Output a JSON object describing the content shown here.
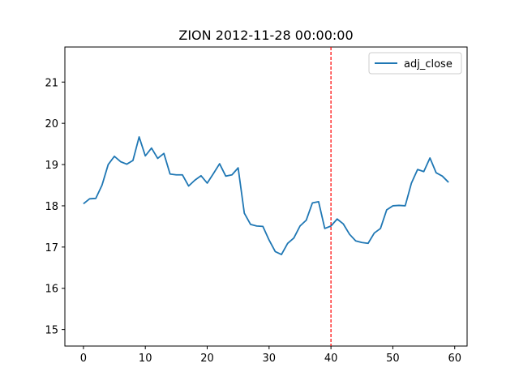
{
  "chart_data": {
    "type": "line",
    "title": "ZION 2012-11-28 00:00:00",
    "xlabel": "",
    "ylabel": "",
    "xlim": [
      -3.0,
      62.0
    ],
    "ylim": [
      14.6,
      21.85
    ],
    "xticks": [
      0,
      10,
      20,
      30,
      40,
      50,
      60
    ],
    "yticks": [
      15,
      16,
      17,
      18,
      19,
      20,
      21
    ],
    "grid": false,
    "legend": "upper right",
    "series": [
      {
        "name": "adj_close",
        "color": "#1f77b4",
        "x": [
          0,
          1,
          2,
          3,
          4,
          5,
          6,
          7,
          8,
          9,
          10,
          11,
          12,
          13,
          14,
          15,
          16,
          17,
          18,
          19,
          20,
          21,
          22,
          23,
          24,
          25,
          26,
          27,
          28,
          29,
          30,
          31,
          32,
          33,
          34,
          35,
          36,
          37,
          38,
          39,
          40,
          41,
          42,
          43,
          44,
          45,
          46,
          47,
          48,
          49,
          50,
          51,
          52,
          53,
          54,
          55,
          56,
          57,
          58,
          59
        ],
        "values": [
          18.05,
          18.17,
          18.18,
          18.5,
          19.0,
          19.2,
          19.07,
          19.01,
          19.1,
          19.67,
          19.21,
          19.4,
          19.15,
          19.27,
          18.77,
          18.75,
          18.75,
          18.48,
          18.62,
          18.73,
          18.55,
          18.78,
          19.02,
          18.72,
          18.75,
          18.92,
          17.82,
          17.55,
          17.51,
          17.5,
          17.17,
          16.89,
          16.82,
          17.09,
          17.22,
          17.51,
          17.65,
          18.07,
          18.1,
          17.45,
          17.51,
          17.68,
          17.56,
          17.31,
          17.15,
          17.11,
          17.09,
          17.34,
          17.45,
          17.9,
          18.0,
          18.01,
          18.0,
          18.55,
          18.88,
          18.83,
          19.16,
          18.8,
          18.72,
          18.57
        ]
      }
    ],
    "annotations": [
      {
        "type": "vline",
        "x": 40,
        "color": "#ff0000",
        "style": "dashed"
      }
    ]
  }
}
